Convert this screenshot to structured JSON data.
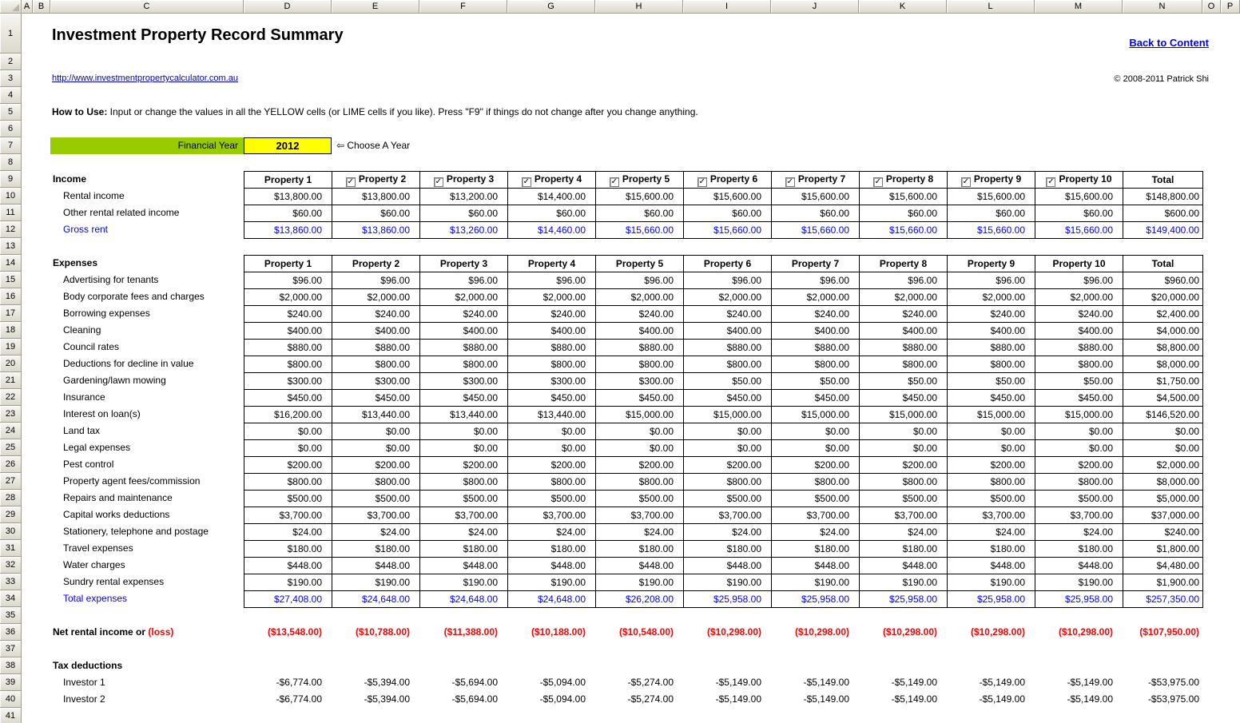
{
  "sheet": {
    "col_headers": [
      "A",
      "B",
      "C",
      "D",
      "E",
      "F",
      "G",
      "H",
      "I",
      "J",
      "K",
      "L",
      "M",
      "N",
      "O",
      "P"
    ],
    "row_count": 42
  },
  "page": {
    "title": "Investment Property Record Summary",
    "back_link": "Back to Content",
    "url": "http://www.investmentpropertycalculator.com.au",
    "copyright": "© 2008-2011 Patrick Shi",
    "how_to_use": {
      "label": "How to Use:",
      "text": " Input or change the values in all the YELLOW cells (or LIME cells if you like). Press \"F9\" if things do not change after you change anything."
    }
  },
  "year_selector": {
    "label": "Financial Year",
    "value": "2012",
    "hint": "⇦ Choose A Year"
  },
  "colors": {
    "lime_cell": "#99CC00",
    "yellow_cell": "#FFFF00",
    "link_blue": "#0000FF",
    "total_blue": "#0000FF",
    "loss_red": "#FF0000"
  },
  "income": {
    "section_label": "Income",
    "columns": [
      "Property 1",
      "Property 2",
      "Property 3",
      "Property 4",
      "Property 5",
      "Property 6",
      "Property 7",
      "Property 8",
      "Property 9",
      "Property 10",
      "Total"
    ],
    "checkbox_columns": [
      1,
      2,
      3,
      4,
      5,
      6,
      7,
      8,
      9
    ],
    "rows": [
      {
        "label": "Rental income",
        "values": [
          "$13,800.00",
          "$13,800.00",
          "$13,200.00",
          "$14,400.00",
          "$15,600.00",
          "$15,600.00",
          "$15,600.00",
          "$15,600.00",
          "$15,600.00",
          "$15,600.00",
          "$148,800.00"
        ]
      },
      {
        "label": "Other rental related income",
        "values": [
          "$60.00",
          "$60.00",
          "$60.00",
          "$60.00",
          "$60.00",
          "$60.00",
          "$60.00",
          "$60.00",
          "$60.00",
          "$60.00",
          "$600.00"
        ]
      }
    ],
    "total_row": {
      "label": "Gross rent",
      "values": [
        "$13,860.00",
        "$13,860.00",
        "$13,260.00",
        "$14,460.00",
        "$15,660.00",
        "$15,660.00",
        "$15,660.00",
        "$15,660.00",
        "$15,660.00",
        "$15,660.00",
        "$149,400.00"
      ]
    }
  },
  "expenses": {
    "section_label": "Expenses",
    "columns": [
      "Property 1",
      "Property 2",
      "Property 3",
      "Property 4",
      "Property 5",
      "Property 6",
      "Property 7",
      "Property 8",
      "Property 9",
      "Property 10",
      "Total"
    ],
    "checkbox_columns": [],
    "rows": [
      {
        "label": "Advertising for tenants",
        "values": [
          "$96.00",
          "$96.00",
          "$96.00",
          "$96.00",
          "$96.00",
          "$96.00",
          "$96.00",
          "$96.00",
          "$96.00",
          "$96.00",
          "$960.00"
        ]
      },
      {
        "label": "Body corporate fees and charges",
        "values": [
          "$2,000.00",
          "$2,000.00",
          "$2,000.00",
          "$2,000.00",
          "$2,000.00",
          "$2,000.00",
          "$2,000.00",
          "$2,000.00",
          "$2,000.00",
          "$2,000.00",
          "$20,000.00"
        ]
      },
      {
        "label": "Borrowing expenses",
        "values": [
          "$240.00",
          "$240.00",
          "$240.00",
          "$240.00",
          "$240.00",
          "$240.00",
          "$240.00",
          "$240.00",
          "$240.00",
          "$240.00",
          "$2,400.00"
        ]
      },
      {
        "label": "Cleaning",
        "values": [
          "$400.00",
          "$400.00",
          "$400.00",
          "$400.00",
          "$400.00",
          "$400.00",
          "$400.00",
          "$400.00",
          "$400.00",
          "$400.00",
          "$4,000.00"
        ]
      },
      {
        "label": "Council rates",
        "values": [
          "$880.00",
          "$880.00",
          "$880.00",
          "$880.00",
          "$880.00",
          "$880.00",
          "$880.00",
          "$880.00",
          "$880.00",
          "$880.00",
          "$8,800.00"
        ]
      },
      {
        "label": "Deductions for decline in value",
        "values": [
          "$800.00",
          "$800.00",
          "$800.00",
          "$800.00",
          "$800.00",
          "$800.00",
          "$800.00",
          "$800.00",
          "$800.00",
          "$800.00",
          "$8,000.00"
        ]
      },
      {
        "label": "Gardening/lawn mowing",
        "values": [
          "$300.00",
          "$300.00",
          "$300.00",
          "$300.00",
          "$300.00",
          "$50.00",
          "$50.00",
          "$50.00",
          "$50.00",
          "$50.00",
          "$1,750.00"
        ]
      },
      {
        "label": "Insurance",
        "values": [
          "$450.00",
          "$450.00",
          "$450.00",
          "$450.00",
          "$450.00",
          "$450.00",
          "$450.00",
          "$450.00",
          "$450.00",
          "$450.00",
          "$4,500.00"
        ]
      },
      {
        "label": "Interest on loan(s)",
        "values": [
          "$16,200.00",
          "$13,440.00",
          "$13,440.00",
          "$13,440.00",
          "$15,000.00",
          "$15,000.00",
          "$15,000.00",
          "$15,000.00",
          "$15,000.00",
          "$15,000.00",
          "$146,520.00"
        ]
      },
      {
        "label": "Land tax",
        "values": [
          "$0.00",
          "$0.00",
          "$0.00",
          "$0.00",
          "$0.00",
          "$0.00",
          "$0.00",
          "$0.00",
          "$0.00",
          "$0.00",
          "$0.00"
        ]
      },
      {
        "label": "Legal expenses",
        "values": [
          "$0.00",
          "$0.00",
          "$0.00",
          "$0.00",
          "$0.00",
          "$0.00",
          "$0.00",
          "$0.00",
          "$0.00",
          "$0.00",
          "$0.00"
        ]
      },
      {
        "label": "Pest control",
        "values": [
          "$200.00",
          "$200.00",
          "$200.00",
          "$200.00",
          "$200.00",
          "$200.00",
          "$200.00",
          "$200.00",
          "$200.00",
          "$200.00",
          "$2,000.00"
        ]
      },
      {
        "label": "Property agent fees/commission",
        "values": [
          "$800.00",
          "$800.00",
          "$800.00",
          "$800.00",
          "$800.00",
          "$800.00",
          "$800.00",
          "$800.00",
          "$800.00",
          "$800.00",
          "$8,000.00"
        ]
      },
      {
        "label": "Repairs and maintenance",
        "values": [
          "$500.00",
          "$500.00",
          "$500.00",
          "$500.00",
          "$500.00",
          "$500.00",
          "$500.00",
          "$500.00",
          "$500.00",
          "$500.00",
          "$5,000.00"
        ]
      },
      {
        "label": "Capital works deductions",
        "values": [
          "$3,700.00",
          "$3,700.00",
          "$3,700.00",
          "$3,700.00",
          "$3,700.00",
          "$3,700.00",
          "$3,700.00",
          "$3,700.00",
          "$3,700.00",
          "$3,700.00",
          "$37,000.00"
        ]
      },
      {
        "label": "Stationery, telephone and postage",
        "values": [
          "$24.00",
          "$24.00",
          "$24.00",
          "$24.00",
          "$24.00",
          "$24.00",
          "$24.00",
          "$24.00",
          "$24.00",
          "$24.00",
          "$240.00"
        ]
      },
      {
        "label": "Travel expenses",
        "values": [
          "$180.00",
          "$180.00",
          "$180.00",
          "$180.00",
          "$180.00",
          "$180.00",
          "$180.00",
          "$180.00",
          "$180.00",
          "$180.00",
          "$1,800.00"
        ]
      },
      {
        "label": "Water charges",
        "values": [
          "$448.00",
          "$448.00",
          "$448.00",
          "$448.00",
          "$448.00",
          "$448.00",
          "$448.00",
          "$448.00",
          "$448.00",
          "$448.00",
          "$4,480.00"
        ]
      },
      {
        "label": "Sundry rental expenses",
        "values": [
          "$190.00",
          "$190.00",
          "$190.00",
          "$190.00",
          "$190.00",
          "$190.00",
          "$190.00",
          "$190.00",
          "$190.00",
          "$190.00",
          "$1,900.00"
        ]
      }
    ],
    "total_row": {
      "label": "Total expenses",
      "values": [
        "$27,408.00",
        "$24,648.00",
        "$24,648.00",
        "$24,648.00",
        "$26,208.00",
        "$25,958.00",
        "$25,958.00",
        "$25,958.00",
        "$25,958.00",
        "$25,958.00",
        "$257,350.00"
      ]
    }
  },
  "net_income": {
    "label_prefix": "Net rental income or ",
    "label_loss": "(loss)",
    "values": [
      "($13,548.00)",
      "($10,788.00)",
      "($11,388.00)",
      "($10,188.00)",
      "($10,548.00)",
      "($10,298.00)",
      "($10,298.00)",
      "($10,298.00)",
      "($10,298.00)",
      "($10,298.00)",
      "($107,950.00)"
    ]
  },
  "tax_deductions": {
    "section_label": "Tax deductions",
    "rows": [
      {
        "label": "Investor 1",
        "values": [
          "-$6,774.00",
          "-$5,394.00",
          "-$5,694.00",
          "-$5,094.00",
          "-$5,274.00",
          "-$5,149.00",
          "-$5,149.00",
          "-$5,149.00",
          "-$5,149.00",
          "-$5,149.00",
          "-$53,975.00"
        ]
      },
      {
        "label": "Investor 2",
        "values": [
          "-$6,774.00",
          "-$5,394.00",
          "-$5,694.00",
          "-$5,094.00",
          "-$5,274.00",
          "-$5,149.00",
          "-$5,149.00",
          "-$5,149.00",
          "-$5,149.00",
          "-$5,149.00",
          "-$53,975.00"
        ]
      }
    ]
  }
}
